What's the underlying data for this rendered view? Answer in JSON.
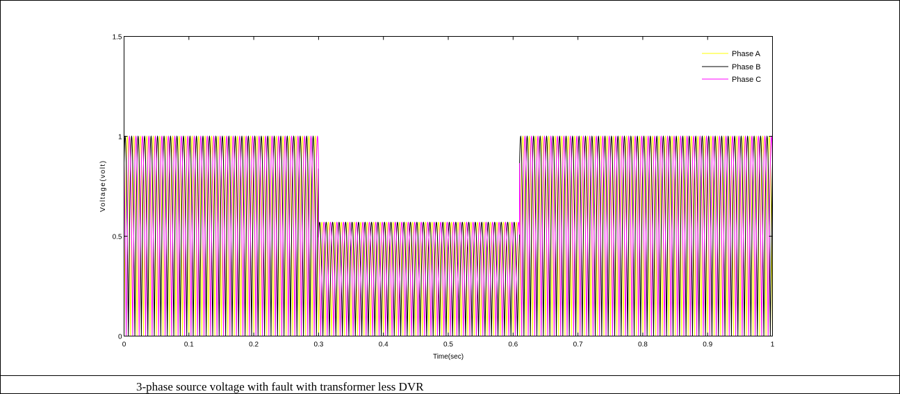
{
  "caption": "3-phase source voltage with fault with transformer less  DVR",
  "chart_data": {
    "type": "line",
    "title": "",
    "xlabel": "Time(sec)",
    "ylabel": "Voltage(volt)",
    "xlim": [
      0,
      1
    ],
    "ylim": [
      0,
      1.5
    ],
    "xticks": [
      "0",
      "0.1",
      "0.2",
      "0.3",
      "0.4",
      "0.5",
      "0.6",
      "0.7",
      "0.8",
      "0.9",
      "1"
    ],
    "yticks": [
      "0",
      "0.5",
      "1",
      "1.5"
    ],
    "grid": false,
    "legend_position": "top-right",
    "frequency_hz": 50,
    "series": [
      {
        "name": "Phase A",
        "color": "#ffff00",
        "amplitude": [
          [
            0,
            1
          ],
          [
            0.3,
            1
          ],
          [
            0.3,
            0.57
          ],
          [
            0.61,
            0.57
          ],
          [
            0.61,
            1
          ],
          [
            1,
            1
          ]
        ]
      },
      {
        "name": "Phase B",
        "color": "#000000",
        "amplitude": [
          [
            0,
            1
          ],
          [
            0.3,
            1
          ],
          [
            0.3,
            0.57
          ],
          [
            0.61,
            0.57
          ],
          [
            0.61,
            1
          ],
          [
            1,
            1
          ]
        ]
      },
      {
        "name": "Phase C",
        "color": "#ff00ff",
        "amplitude": [
          [
            0,
            1
          ],
          [
            0.3,
            1
          ],
          [
            0.3,
            0.57
          ],
          [
            0.61,
            0.57
          ],
          [
            0.61,
            1
          ],
          [
            1,
            1
          ]
        ]
      }
    ]
  }
}
